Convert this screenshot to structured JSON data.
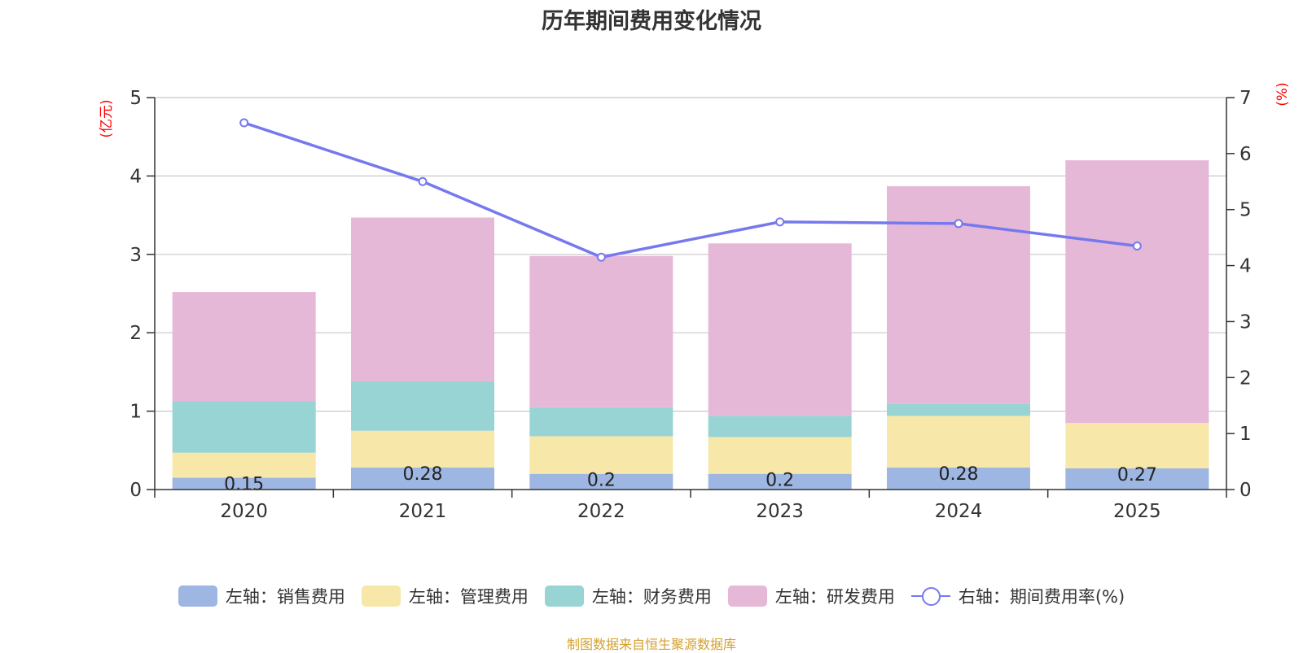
{
  "colors": {
    "sales": "#9db6e2",
    "admin": "#f7e7a8",
    "finance": "#98d4d4",
    "rd": "#e6b8d8",
    "rate": "#7679ee",
    "unit": "#ff0000",
    "source": "#d4a030"
  },
  "chart_data": {
    "type": "bar",
    "stacked": true,
    "title": "历年期间费用变化情况",
    "categories": [
      "2020",
      "2021",
      "2022",
      "2023",
      "2024",
      "2025"
    ],
    "y_left": {
      "label": "(亿元)",
      "range": [
        0,
        5
      ],
      "ticks": [
        "0",
        "1",
        "2",
        "3",
        "4",
        "5"
      ]
    },
    "y_right": {
      "label": "(%)",
      "range": [
        0,
        7
      ],
      "ticks": [
        "0",
        "1",
        "2",
        "3",
        "4",
        "5",
        "6",
        "7"
      ]
    },
    "series": [
      {
        "key": "sales",
        "name": "左轴：销售费用",
        "axis": "left",
        "values": [
          0.15,
          0.28,
          0.2,
          0.2,
          0.28,
          0.27
        ],
        "labels": [
          "0.15",
          "0.28",
          "0.2",
          "0.2",
          "0.28",
          "0.27"
        ]
      },
      {
        "key": "admin",
        "name": "左轴：管理费用",
        "axis": "left",
        "values": [
          0.32,
          0.47,
          0.48,
          0.47,
          0.66,
          0.58
        ]
      },
      {
        "key": "finance",
        "name": "左轴：财务费用",
        "axis": "left",
        "values": [
          0.66,
          0.63,
          0.37,
          0.27,
          0.15,
          0.0
        ]
      },
      {
        "key": "rd",
        "name": "左轴：研发费用",
        "axis": "left",
        "values": [
          1.39,
          2.09,
          1.93,
          2.2,
          2.78,
          3.35
        ]
      },
      {
        "key": "rate",
        "name": "右轴：期间费用率(%)",
        "axis": "right",
        "type": "line",
        "values": [
          6.55,
          5.5,
          4.15,
          4.78,
          4.75,
          4.35
        ]
      }
    ],
    "legend_position": "bottom"
  },
  "source": "制图数据来自恒生聚源数据库"
}
